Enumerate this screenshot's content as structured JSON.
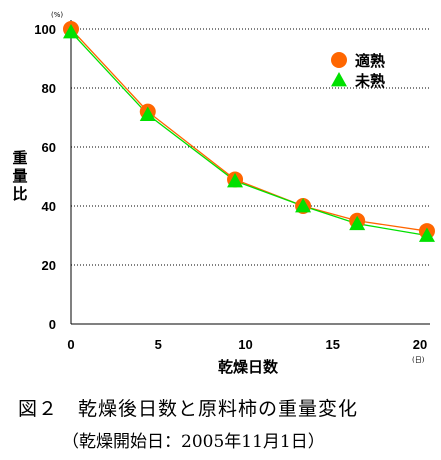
{
  "chart_data": {
    "type": "line",
    "xlabel": "乾燥日数",
    "ylabel": "重量比",
    "x_unit": "(日)",
    "y_unit": "(%)",
    "xlim": [
      0,
      20
    ],
    "ylim": [
      0,
      100
    ],
    "x_ticks": [
      "0",
      "5",
      "10",
      "15",
      "20"
    ],
    "y_ticks": [
      "0",
      "20",
      "40",
      "60",
      "80",
      "100"
    ],
    "grid": "horizontal dotted",
    "legend_position": "top-right",
    "series": [
      {
        "name": "適熟",
        "marker": "circle",
        "color": "#ff6600",
        "x": [
          0,
          4.4,
          9.4,
          13.3,
          16.4,
          20.4
        ],
        "values": [
          100,
          72,
          49,
          40,
          35,
          31.5
        ]
      },
      {
        "name": "未熟",
        "marker": "triangle",
        "color": "#00e000",
        "x": [
          0,
          4.4,
          9.4,
          13.3,
          16.4,
          20.4
        ],
        "values": [
          99,
          71,
          48.5,
          40,
          34,
          30
        ]
      }
    ]
  },
  "caption": {
    "line1": "図２　乾燥後日数と原料柿の重量変化",
    "line2": "（乾燥開始日：2005年11月1日）"
  }
}
